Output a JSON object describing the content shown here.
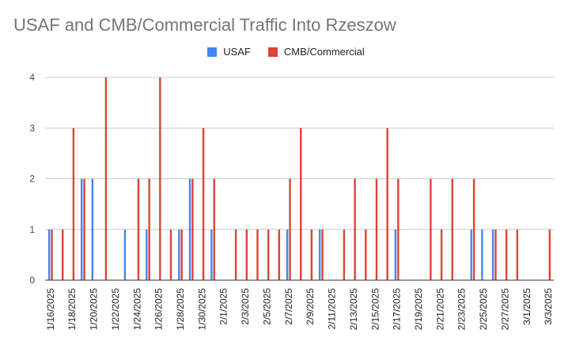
{
  "colors": {
    "usaf": "#4285F4",
    "cmb": "#DB4437",
    "grid": "#cccccc",
    "baseline": "#333333",
    "title": "#757575"
  },
  "chart_data": {
    "type": "bar",
    "title": "USAF and CMB/Commercial Traffic Into Rzeszow",
    "xlabel": "",
    "ylabel": "",
    "ylim": [
      0,
      4
    ],
    "yticks": [
      0,
      1,
      2,
      3,
      4
    ],
    "grid": true,
    "legend_position": "top",
    "x_range": [
      "1/16/2025",
      "3/3/2025"
    ],
    "tick_labels": [
      "1/16/2025",
      "1/18/2025",
      "1/20/2025",
      "1/22/2025",
      "1/24/2025",
      "1/26/2025",
      "1/28/2025",
      "1/30/2025",
      "2/1/2025",
      "2/3/2025",
      "2/5/2025",
      "2/7/2025",
      "2/9/2025",
      "2/11/2025",
      "2/13/2025",
      "2/15/2025",
      "2/17/2025",
      "2/19/2025",
      "2/21/2025",
      "2/23/2025",
      "2/25/2025",
      "2/27/2025",
      "3/1/2025",
      "3/3/2025"
    ],
    "series": [
      {
        "name": "USAF",
        "color": "#4285F4",
        "points": [
          {
            "x": "1/16/2025",
            "y": 1
          },
          {
            "x": "1/19/2025",
            "y": 2
          },
          {
            "x": "1/20/2025",
            "y": 2
          },
          {
            "x": "1/23/2025",
            "y": 1
          },
          {
            "x": "1/25/2025",
            "y": 1
          },
          {
            "x": "1/28/2025",
            "y": 1
          },
          {
            "x": "1/29/2025",
            "y": 2
          },
          {
            "x": "1/31/2025",
            "y": 1
          },
          {
            "x": "2/7/2025",
            "y": 1
          },
          {
            "x": "2/10/2025",
            "y": 1
          },
          {
            "x": "2/17/2025",
            "y": 1
          },
          {
            "x": "2/24/2025",
            "y": 1
          },
          {
            "x": "2/25/2025",
            "y": 1
          },
          {
            "x": "2/26/2025",
            "y": 1
          }
        ]
      },
      {
        "name": "CMB/Commercial",
        "color": "#DB4437",
        "points": [
          {
            "x": "1/16/2025",
            "y": 1
          },
          {
            "x": "1/17/2025",
            "y": 1
          },
          {
            "x": "1/18/2025",
            "y": 3
          },
          {
            "x": "1/19/2025",
            "y": 2
          },
          {
            "x": "1/21/2025",
            "y": 4
          },
          {
            "x": "1/24/2025",
            "y": 2
          },
          {
            "x": "1/25/2025",
            "y": 2
          },
          {
            "x": "1/26/2025",
            "y": 4
          },
          {
            "x": "1/27/2025",
            "y": 1
          },
          {
            "x": "1/28/2025",
            "y": 1
          },
          {
            "x": "1/29/2025",
            "y": 2
          },
          {
            "x": "1/30/2025",
            "y": 3
          },
          {
            "x": "1/31/2025",
            "y": 2
          },
          {
            "x": "2/2/2025",
            "y": 1
          },
          {
            "x": "2/3/2025",
            "y": 1
          },
          {
            "x": "2/4/2025",
            "y": 1
          },
          {
            "x": "2/5/2025",
            "y": 1
          },
          {
            "x": "2/6/2025",
            "y": 1
          },
          {
            "x": "2/7/2025",
            "y": 2
          },
          {
            "x": "2/8/2025",
            "y": 3
          },
          {
            "x": "2/9/2025",
            "y": 1
          },
          {
            "x": "2/10/2025",
            "y": 1
          },
          {
            "x": "2/12/2025",
            "y": 1
          },
          {
            "x": "2/13/2025",
            "y": 2
          },
          {
            "x": "2/14/2025",
            "y": 1
          },
          {
            "x": "2/15/2025",
            "y": 2
          },
          {
            "x": "2/16/2025",
            "y": 3
          },
          {
            "x": "2/17/2025",
            "y": 2
          },
          {
            "x": "2/20/2025",
            "y": 2
          },
          {
            "x": "2/21/2025",
            "y": 1
          },
          {
            "x": "2/22/2025",
            "y": 2
          },
          {
            "x": "2/24/2025",
            "y": 2
          },
          {
            "x": "2/26/2025",
            "y": 1
          },
          {
            "x": "2/27/2025",
            "y": 1
          },
          {
            "x": "2/28/2025",
            "y": 1
          },
          {
            "x": "3/3/2025",
            "y": 1
          }
        ]
      }
    ]
  }
}
